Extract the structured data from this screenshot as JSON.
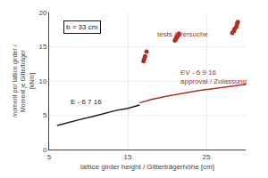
{
  "chart_data": {
    "type": "line",
    "xlabel": "lattice girder height / Gitterträgerhöhe [cm]",
    "ylabel": "moment per lattice girder /\nMoment je Gitterträger\n[kNm]",
    "xlim": [
      5,
      30
    ],
    "ylim": [
      0,
      20
    ],
    "xticks": [
      5,
      15,
      25
    ],
    "yticks": [
      0,
      5,
      10,
      15,
      20
    ],
    "grid": true,
    "series": [
      {
        "type": "line",
        "color": "#1a1a1a",
        "x": [
          6.0,
          7.5,
          9.0,
          10.5,
          12.0,
          13.5,
          15.0,
          16.5
        ],
        "values": [
          3.5,
          4.0,
          4.4,
          4.8,
          5.3,
          5.7,
          6.0,
          6.5
        ]
      },
      {
        "type": "line",
        "color": "#b03020",
        "x": [
          16.5,
          18.0,
          20.0,
          22.0,
          24.0,
          26.0,
          28.0,
          30.0
        ],
        "values": [
          6.8,
          7.3,
          7.8,
          8.2,
          8.6,
          8.9,
          9.2,
          9.5
        ]
      },
      {
        "type": "scatter",
        "color": "#b03020",
        "x": [
          17.0,
          17.1,
          17.2,
          17.4,
          21.0,
          21.1,
          21.2,
          21.3,
          21.4,
          21.5,
          28.3,
          28.5,
          28.6,
          28.8,
          28.9,
          29.0
        ],
        "values": [
          12.9,
          13.2,
          13.6,
          14.3,
          15.9,
          16.1,
          16.3,
          16.5,
          16.7,
          16.9,
          17.0,
          17.3,
          17.6,
          17.9,
          18.3,
          18.6
        ]
      }
    ],
    "annotations": [
      {
        "text": "E - 6 7 16",
        "x": 7.5,
        "y": 7.0,
        "color": "#1a1a1a"
      },
      {
        "text": "EV - 6 9 16",
        "x": 21.5,
        "y": 11.2,
        "color": "#b03020"
      },
      {
        "text": "approval / Zulassung",
        "x": 21.5,
        "y": 10.0,
        "color": "#b03020"
      },
      {
        "text": "tests / Versuche",
        "x": 18.5,
        "y": 16.8,
        "color": "#b03020"
      }
    ],
    "boxed_annotations": [
      {
        "text": "b = 33 cm",
        "x": 6.8,
        "y": 17.8,
        "color": "#1a1a1a"
      }
    ]
  }
}
